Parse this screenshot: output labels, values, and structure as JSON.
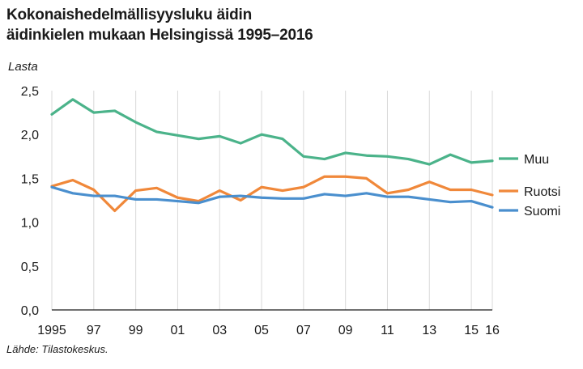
{
  "title_line1": "Kokonaishedelmällisyysluku äidin",
  "title_line2": "äidinkielen mukaan Helsingissä 1995–2016",
  "ylabel": "Lasta",
  "source": "Lähde: Tilastokeskus.",
  "chart_data": {
    "type": "line",
    "x": [
      1995,
      1996,
      1997,
      1998,
      1999,
      2000,
      2001,
      2002,
      2003,
      2004,
      2005,
      2006,
      2007,
      2008,
      2009,
      2010,
      2011,
      2012,
      2013,
      2014,
      2015,
      2016
    ],
    "series": [
      {
        "name": "Muu",
        "color": "#4bb38a",
        "values": [
          2.23,
          2.4,
          2.25,
          2.27,
          2.14,
          2.03,
          1.99,
          1.95,
          1.98,
          1.9,
          2.0,
          1.95,
          1.75,
          1.72,
          1.79,
          1.76,
          1.75,
          1.72,
          1.66,
          1.77,
          1.68,
          1.7
        ]
      },
      {
        "name": "Ruotsi",
        "color": "#f0883a",
        "values": [
          1.41,
          1.48,
          1.37,
          1.13,
          1.36,
          1.39,
          1.28,
          1.24,
          1.36,
          1.25,
          1.4,
          1.36,
          1.4,
          1.52,
          1.52,
          1.5,
          1.33,
          1.37,
          1.46,
          1.37,
          1.37,
          1.31
        ]
      },
      {
        "name": "Suomi",
        "color": "#4a8fce",
        "values": [
          1.4,
          1.33,
          1.3,
          1.3,
          1.26,
          1.26,
          1.24,
          1.22,
          1.29,
          1.3,
          1.28,
          1.27,
          1.27,
          1.32,
          1.3,
          1.33,
          1.29,
          1.29,
          1.26,
          1.23,
          1.24,
          1.17
        ]
      }
    ],
    "yticks": [
      "0,0",
      "0,5",
      "1,0",
      "1,5",
      "2,0",
      "2,5"
    ],
    "ytick_values": [
      0,
      0.5,
      1.0,
      1.5,
      2.0,
      2.5
    ],
    "xticks": [
      "1995",
      "97",
      "99",
      "01",
      "03",
      "05",
      "07",
      "09",
      "11",
      "13",
      "15",
      "16"
    ],
    "xtick_values": [
      1995,
      1997,
      1999,
      2001,
      2003,
      2005,
      2007,
      2009,
      2011,
      2013,
      2015,
      2016
    ],
    "ylim": [
      0,
      2.5
    ],
    "xlim": [
      1995,
      2016
    ],
    "grid": "vertical",
    "legend": "right, at line ends"
  }
}
